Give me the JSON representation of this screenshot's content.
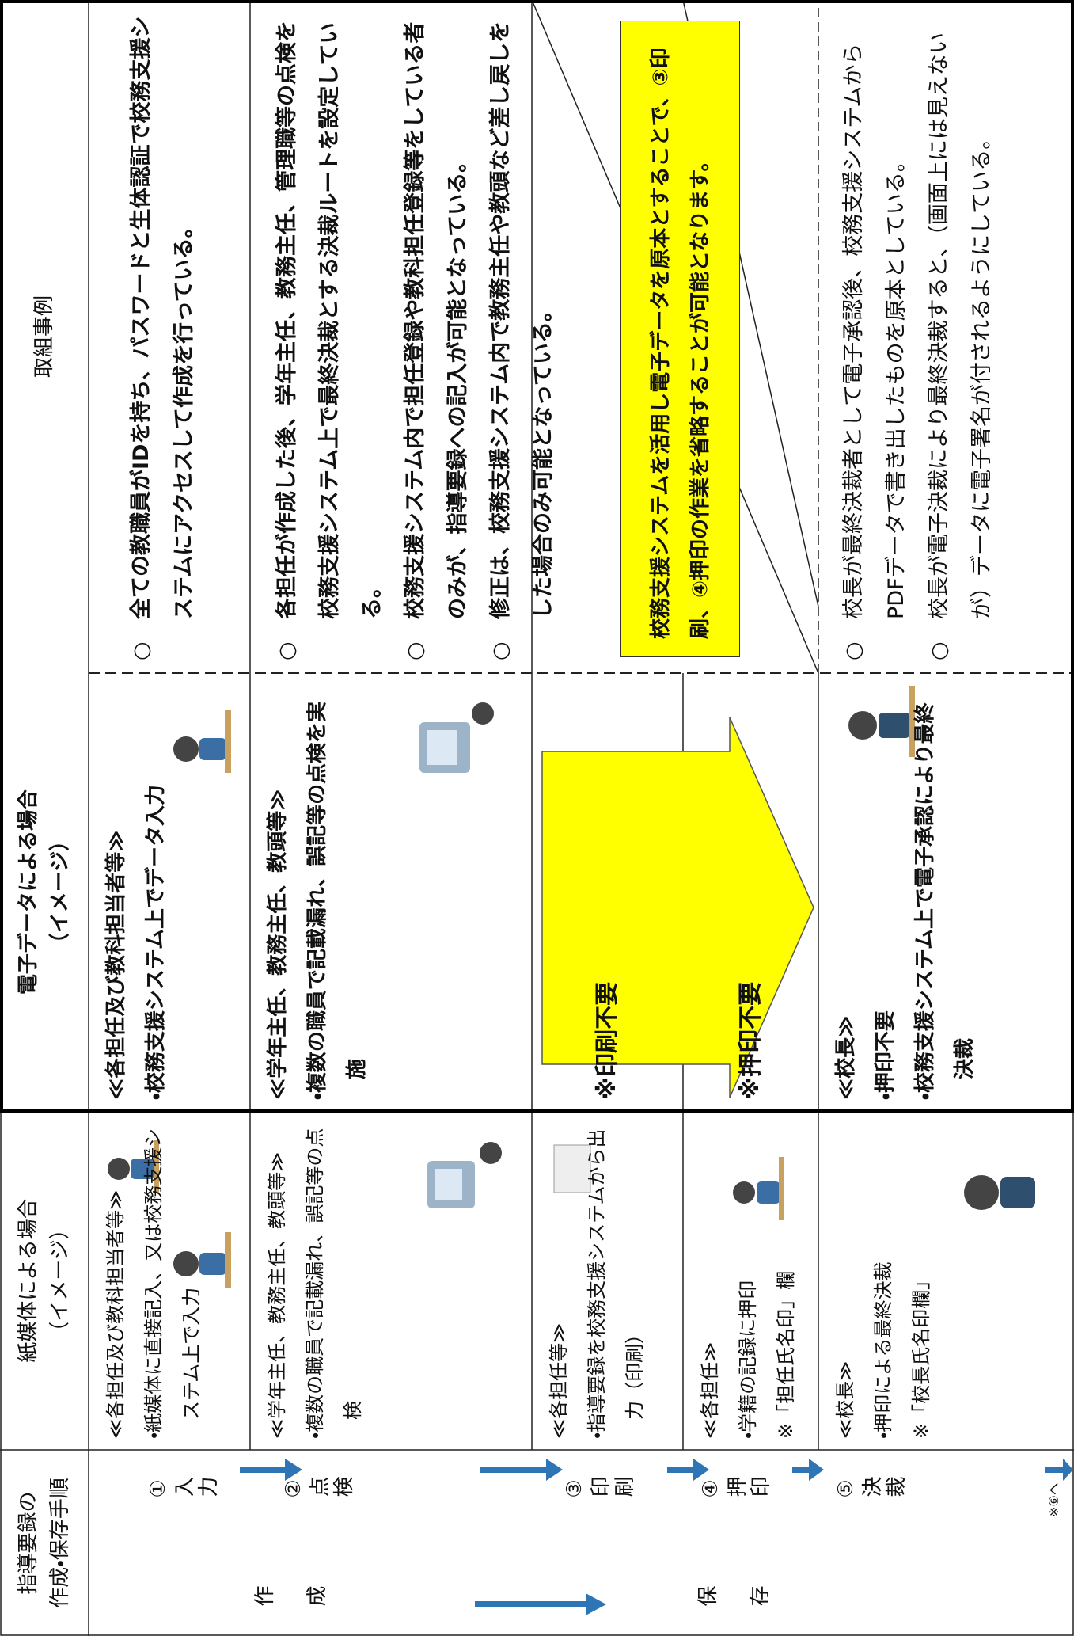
{
  "columns": [
    "指導要録の\n作成・保存手順",
    "紙媒体による場合\n（イメージ）",
    "電子データによる場合\n（イメージ）",
    "取組事例"
  ],
  "phases": [
    "作成",
    "保存"
  ],
  "steps": [
    {
      "label": "①入力",
      "paper": [
        "≪各担任及び教科担当者等≫",
        "・紙媒体に直接記入、又は校務支援システム上で入力"
      ],
      "electronic": [
        "≪各担任及び教科担当者等≫",
        "・校務支援システム上でデータ入力"
      ]
    },
    {
      "label": "②点検",
      "paper": [
        "≪学年主任、教務主任、教頭等≫",
        "・複数の職員で記載漏れ、誤記等の点検"
      ],
      "electronic": [
        "≪学年主任、教務主任、教頭等≫",
        "・複数の職員で記載漏れ、誤記等の点検を実施"
      ]
    },
    {
      "label": "③印刷",
      "paper": [
        "≪各担任等≫",
        "・指導要録を校務支援システムから出力（印刷）"
      ],
      "electronic": [
        "※印刷不要"
      ]
    },
    {
      "label": "④押印",
      "paper": [
        "≪各担任≫",
        "・学籍の記録に押印",
        "※「担任氏名印」欄"
      ],
      "electronic": [
        "※押印不要"
      ]
    },
    {
      "label": "⑤決裁",
      "paper": [
        "≪校長≫",
        "・押印による最終決裁",
        "※「校長氏名印欄」"
      ],
      "electronic": [
        "≪校長≫",
        "・押印不要",
        "・校務支援システム上で電子承認により最終決裁"
      ]
    }
  ],
  "examples": {
    "bullet": "○",
    "input": [
      "全ての教職員がIDを持ち、パスワードと生体認証で校務支援システムにアクセスして作成を行っている。"
    ],
    "check": [
      "各担任が作成した後、学年主任、教務主任、管理職等の点検を校務支援システム上で最終決裁とする決裁ルートを設定している。",
      "校務支援システム内で担任登録や教科担任登録等をしている者のみが、指導要録への記入が可能となっている。",
      "修正は、校務支援システム内で教務主任や教頭など差し戻しをした場合のみ可能となっている。"
    ],
    "approval": [
      "校長が最終決裁者として電子承認後、校務支援システムからPDFデータで書き出したものを原本としている。",
      "校長が電子決裁により最終決裁すると、（画面上には見えないが）データに電子署名が付されるようにしている。"
    ]
  },
  "note": "校務支援システムを活用し電子データを原本とすることで、③印刷、④押印の作業を省略することが可能となります。",
  "next_step_note": "※⑥へ"
}
